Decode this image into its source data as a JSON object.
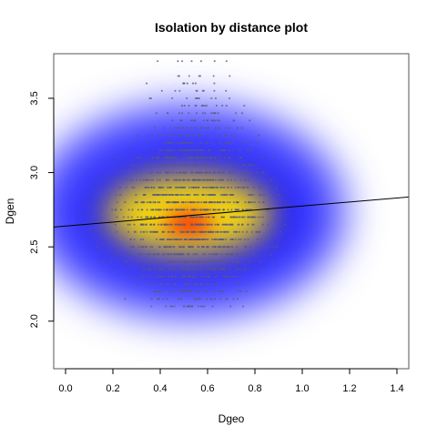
{
  "chart_data": {
    "type": "scatter",
    "title": "Isolation by distance plot",
    "xlabel": "Dgeo",
    "ylabel": "Dgen",
    "xlim": [
      -0.05,
      1.45
    ],
    "ylim": [
      1.68,
      3.8
    ],
    "x_ticks": [
      "0.0",
      "0.2",
      "0.4",
      "0.6",
      "0.8",
      "1.0",
      "1.2",
      "1.4"
    ],
    "y_ticks": [
      "2.0",
      "2.5",
      "3.0",
      "3.5"
    ],
    "x_tick_values": [
      0.0,
      0.2,
      0.4,
      0.6,
      0.8,
      1.0,
      1.2,
      1.4
    ],
    "y_tick_values": [
      2.0,
      2.5,
      3.0,
      3.5
    ],
    "grid": false,
    "regression_line": {
      "intercept": 2.64,
      "slope": 0.135
    },
    "density_peak": {
      "x": 0.52,
      "y": 2.66
    },
    "density_colors": [
      "#ffffff",
      "#0000ff",
      "#ffe000",
      "#ff0000"
    ],
    "point_color": "#5a5a7a",
    "points_note": "Discrete rows of points at regular Dgen levels, densest between Dgeo 0.1 and 1.0",
    "row_levels": [
      2.1,
      2.15,
      2.2,
      2.25,
      2.3,
      2.35,
      2.4,
      2.45,
      2.5,
      2.55,
      2.6,
      2.65,
      2.7,
      2.75,
      2.8,
      2.85,
      2.9,
      2.95,
      3.0,
      3.05,
      3.1,
      3.15,
      3.2,
      3.25,
      3.3,
      3.35,
      3.4,
      3.45,
      3.5,
      3.55,
      3.6,
      3.65,
      3.75
    ]
  }
}
